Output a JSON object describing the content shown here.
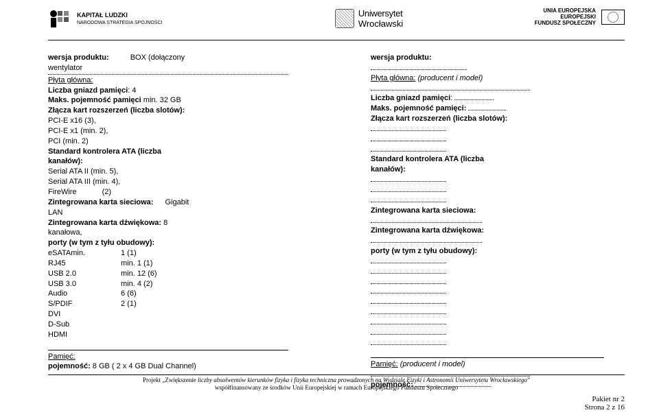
{
  "header": {
    "left_title": "KAPITAŁ LUDZKI",
    "left_sub": "NARODOWA STRATEGIA SPÓJNOŚCI",
    "mid_u1": "Uniwersytet",
    "mid_u2": "Wrocławski",
    "right_l1": "UNIA EUROPEJSKA",
    "right_l2": "EUROPEJSKI",
    "right_l3": "FUNDUSZ SPOŁECZNY"
  },
  "leftcol": {
    "l1a": "wersja produktu:",
    "l1b": "BOX (dołączony",
    "l2": "wentylator",
    "plyta": "Płyta główna:",
    "l3": "Liczba gniazd pamięci",
    "l3b": ": 4",
    "l4a": "Maks. pojemność pamięci",
    "l4b": " min. 32 GB",
    "l5": "Złącza kart rozszerzeń (liczba slotów):",
    "l6": "PCI-E x16 (3),",
    "l7": "PCI-E x1 (min. 2),",
    "l8": "PCI (min. 2)",
    "l9a": "Standard kontrolera ATA (liczba",
    "l9b": "kanałów):",
    "l10": "Serial ATA II (min. 5),",
    "l11": "Serial ATA III (min. 4),",
    "l12a": "FireWire",
    "l12b": "(2)",
    "l13a": "Zintegrowana karta sieciowa:",
    "l13b": "Gigabit",
    "l14": "LAN",
    "l15a": "Zintegrowana karta dźwiękowa:",
    "l15b": " 8",
    "l16": "kanałowa,",
    "l17": "porty (w tym z tyłu obudowy):",
    "ports": [
      {
        "name": "eSATAmin.",
        "val": "1 (1)"
      },
      {
        "name": "RJ45",
        "val": "min. 1 (1)"
      },
      {
        "name": "USB 2.0",
        "val": "min. 12 (6)"
      },
      {
        "name": "USB 3.0",
        "val": "min. 4 (2)"
      },
      {
        "name": "Audio",
        "val": "6 (6)"
      },
      {
        "name": "S/PDIF",
        "val": "2 (1)"
      },
      {
        "name": "DVI",
        "val": ""
      },
      {
        "name": "D-Sub",
        "val": ""
      },
      {
        "name": "HDMI",
        "val": ""
      }
    ],
    "pamiec": "Pamięć:",
    "poj": "pojemność:",
    "pojv": " 8 GB ( 2 x 4 GB Dual Channel)"
  },
  "rightcol": {
    "l1": "wersja produktu:",
    "plyta": "Płyta główna:",
    "plyta_i": " (producent i model)",
    "l2": "Liczba gniazd pamięci",
    "l3": "Maks. pojemność pamięci:",
    "l4": "Złącza kart rozszerzeń (liczba slotów):",
    "l5a": "Standard kontrolera ATA (liczba",
    "l5b": "kanałów):",
    "l6": "Zintegrowana karta sieciowa:",
    "l7": "Zintegrowana karta dźwiękowa:",
    "l8": "porty (w tym z tyłu obudowy):",
    "pamiec": "Pamięć:",
    "pamiec_i": " (producent i model)",
    "poj": "pojemność:"
  },
  "footer": {
    "l1a": "Projekt „Zwiększenie ",
    "l1b": "liczby absolwentów kierunków fizyka i fizyka techniczna prowadzonych na Wydziale Fizyki i Astronomii Uniwersytetu Wrocławskiego",
    "l1c": "”",
    "l2": "współfinansowany ze środków Unii Europejskiej w ramach Europejskiego Funduszu Społecznego",
    "pn1": "Pakiet nr 2",
    "pn2": "Strona 2 z 16"
  }
}
